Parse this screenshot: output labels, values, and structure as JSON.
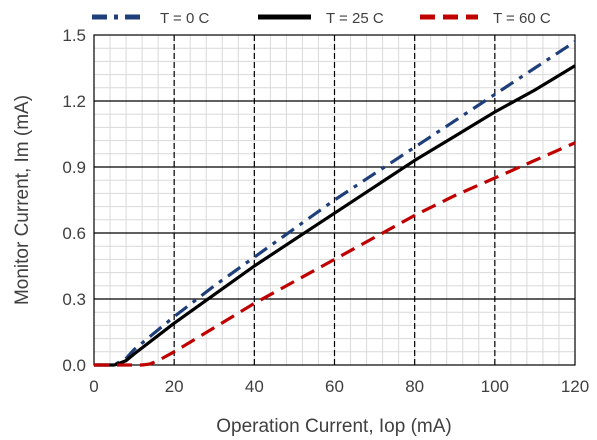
{
  "chart_data": {
    "type": "line",
    "title": "",
    "xlabel": "Operation Current, Iop (mA)",
    "ylabel": "Monitor Current, Im (mA)",
    "xlim": [
      0,
      120
    ],
    "ylim": [
      0,
      1.5
    ],
    "x_ticks": [
      0,
      20,
      40,
      60,
      80,
      100,
      120
    ],
    "y_ticks": [
      0.0,
      0.3,
      0.6,
      0.9,
      1.2,
      1.5
    ],
    "x_tick_labels": [
      "0",
      "20",
      "40",
      "60",
      "80",
      "100",
      "120"
    ],
    "y_tick_labels": [
      "0.0",
      "0.3",
      "0.6",
      "0.9",
      "1.2",
      "1.5"
    ],
    "minor_grid": {
      "x_step": 4,
      "y_step": 0.06
    },
    "legend_position": "top",
    "series": [
      {
        "name": "T = 0 C",
        "color": "#1f3f7a",
        "dash": "dash-dot",
        "x": [
          0,
          5,
          6,
          8,
          10,
          20,
          30,
          40,
          50,
          60,
          70,
          80,
          90,
          100,
          110,
          120
        ],
        "y": [
          0,
          0,
          0.01,
          0.03,
          0.07,
          0.22,
          0.36,
          0.49,
          0.62,
          0.75,
          0.87,
          0.99,
          1.11,
          1.23,
          1.35,
          1.47
        ]
      },
      {
        "name": "T = 25 C",
        "color": "#000000",
        "dash": "solid",
        "x": [
          0,
          5,
          6,
          8,
          10,
          20,
          30,
          40,
          50,
          60,
          70,
          80,
          90,
          100,
          110,
          120
        ],
        "y": [
          0,
          0,
          0.005,
          0.02,
          0.05,
          0.19,
          0.32,
          0.45,
          0.57,
          0.69,
          0.81,
          0.93,
          1.04,
          1.15,
          1.25,
          1.36
        ]
      },
      {
        "name": "T = 60 C",
        "color": "#c00000",
        "dash": "dashed",
        "x": [
          0,
          12,
          14,
          16,
          20,
          30,
          40,
          50,
          60,
          70,
          80,
          90,
          100,
          110,
          120
        ],
        "y": [
          0,
          0,
          0.005,
          0.02,
          0.06,
          0.17,
          0.28,
          0.38,
          0.48,
          0.58,
          0.68,
          0.77,
          0.85,
          0.93,
          1.01
        ]
      }
    ]
  }
}
